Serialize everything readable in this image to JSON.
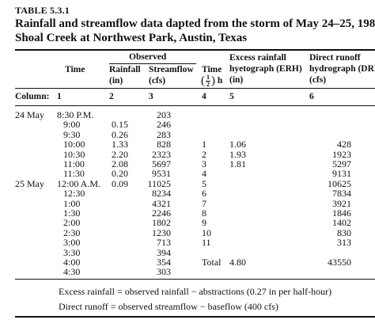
{
  "table_label": "TABLE 5.3.1",
  "title_line1": "Rainfall and streamflow data dapted from the storm of May 24–25, 1981, o",
  "title_line2": "Shoal Creek at Northwest Park, Austin, Texas",
  "headers": {
    "observed": "Observed",
    "time": "Time",
    "rainfall": "Rainfall",
    "rainfall_unit": "(in)",
    "streamflow": "Streamflow",
    "streamflow_unit": "(cfs)",
    "time2": "Time",
    "time2_frac_num": "1",
    "time2_frac_den": "2",
    "time2_unit": "h",
    "erh_line1": "Excess rainfall",
    "erh_line2": "hyetograph (ERH)",
    "erh_unit": "(in)",
    "drh_line1": "Direct runoff",
    "drh_line2": "hydrograph (DRH",
    "drh_unit": "(cfs)"
  },
  "column_row": {
    "label": "Column:",
    "c1": "1",
    "c2": "2",
    "c3": "3",
    "c4": "4",
    "c5": "5",
    "c6": "6"
  },
  "rows": [
    {
      "date": "24 May",
      "time": "8:30 P.M.",
      "rain": "",
      "flow": "203",
      "idx": "",
      "erh": "",
      "drh": ""
    },
    {
      "date": "",
      "time": "9:00",
      "rain": "0.15",
      "flow": "246",
      "idx": "",
      "erh": "",
      "drh": ""
    },
    {
      "date": "",
      "time": "9:30",
      "rain": "0.26",
      "flow": "283",
      "idx": "",
      "erh": "",
      "drh": ""
    },
    {
      "date": "",
      "time": "10:00",
      "rain": "1.33",
      "flow": "828",
      "idx": "1",
      "erh": "1.06",
      "drh": "428"
    },
    {
      "date": "",
      "time": "10:30",
      "rain": "2.20",
      "flow": "2323",
      "idx": "2",
      "erh": "1.93",
      "drh": "1923"
    },
    {
      "date": "",
      "time": "11:00",
      "rain": "2.08",
      "flow": "5697",
      "idx": "3",
      "erh": "1.81",
      "drh": "5297"
    },
    {
      "date": "",
      "time": "11:30",
      "rain": "0.20",
      "flow": "9531",
      "idx": "4",
      "erh": "",
      "drh": "9131"
    },
    {
      "date": "25 May",
      "time": "12:00 A.M.",
      "rain": "0.09",
      "flow": "11025",
      "idx": "5",
      "erh": "",
      "drh": "10625"
    },
    {
      "date": "",
      "time": "12:30",
      "rain": "",
      "flow": "8234",
      "idx": "6",
      "erh": "",
      "drh": "7834"
    },
    {
      "date": "",
      "time": "1:00",
      "rain": "",
      "flow": "4321",
      "idx": "7",
      "erh": "",
      "drh": "3921"
    },
    {
      "date": "",
      "time": "1:30",
      "rain": "",
      "flow": "2246",
      "idx": "8",
      "erh": "",
      "drh": "1846"
    },
    {
      "date": "",
      "time": "2:00",
      "rain": "",
      "flow": "1802",
      "idx": "9",
      "erh": "",
      "drh": "1402"
    },
    {
      "date": "",
      "time": "2:30",
      "rain": "",
      "flow": "1230",
      "idx": "10",
      "erh": "",
      "drh": "830"
    },
    {
      "date": "",
      "time": "3:00",
      "rain": "",
      "flow": "713",
      "idx": "11",
      "erh": "",
      "drh": "313"
    },
    {
      "date": "",
      "time": "3:30",
      "rain": "",
      "flow": "394",
      "idx": "",
      "erh": "",
      "drh": ""
    },
    {
      "date": "",
      "time": "4:00",
      "rain": "",
      "flow": "354",
      "idx": "Total",
      "erh": "4.80",
      "drh": "43550"
    },
    {
      "date": "",
      "time": "4:30",
      "rain": "",
      "flow": "303",
      "idx": "",
      "erh": "",
      "drh": ""
    }
  ],
  "notes": {
    "note1": "Excess rainfall = observed rainfall − abstractions (0.27 in per half-hour)",
    "note2": "Direct runoff = observed streamflow − baseflow (400 cfs)"
  }
}
